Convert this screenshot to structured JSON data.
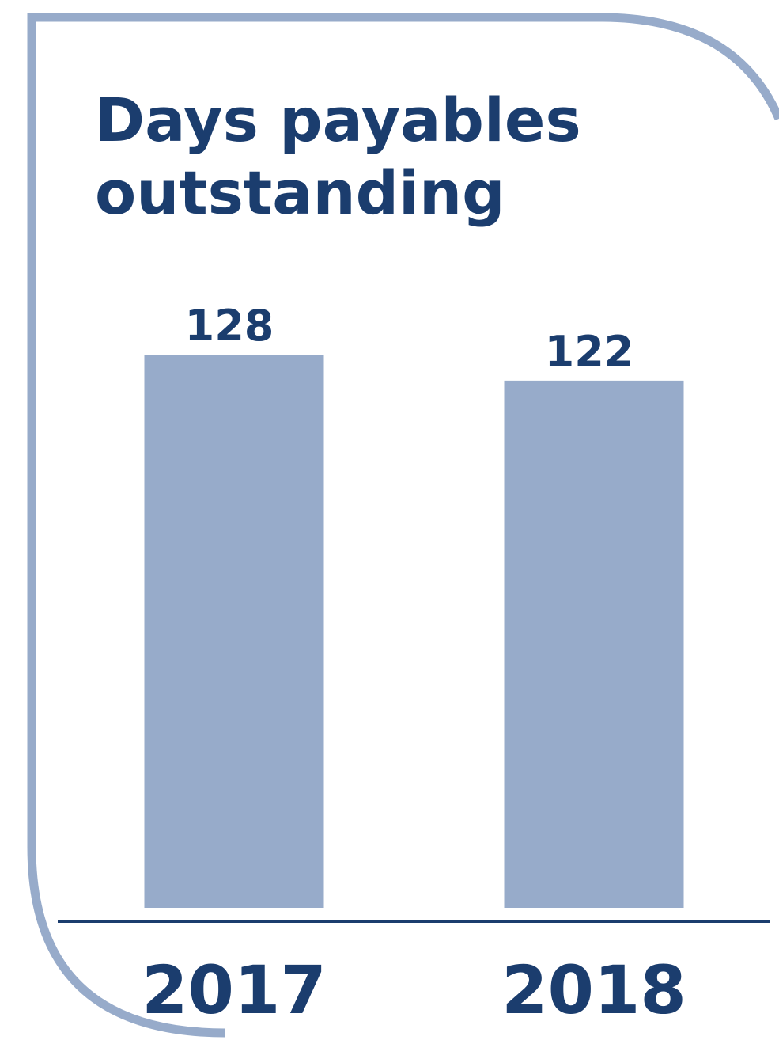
{
  "colors": {
    "frame": "#97abca",
    "bar": "#97abca",
    "text": "#1b3d6e",
    "baseline": "#1b3d6e",
    "background": "#ffffff"
  },
  "title": {
    "line1": "Days payables",
    "line2": "outstanding"
  },
  "chart_data": {
    "type": "bar",
    "title": "Days payables outstanding",
    "categories": [
      "2017",
      "2018"
    ],
    "values": [
      128,
      122
    ],
    "value_labels": [
      "128",
      "122"
    ],
    "xlabel": "",
    "ylabel": "",
    "grid": false,
    "legend": "none"
  }
}
